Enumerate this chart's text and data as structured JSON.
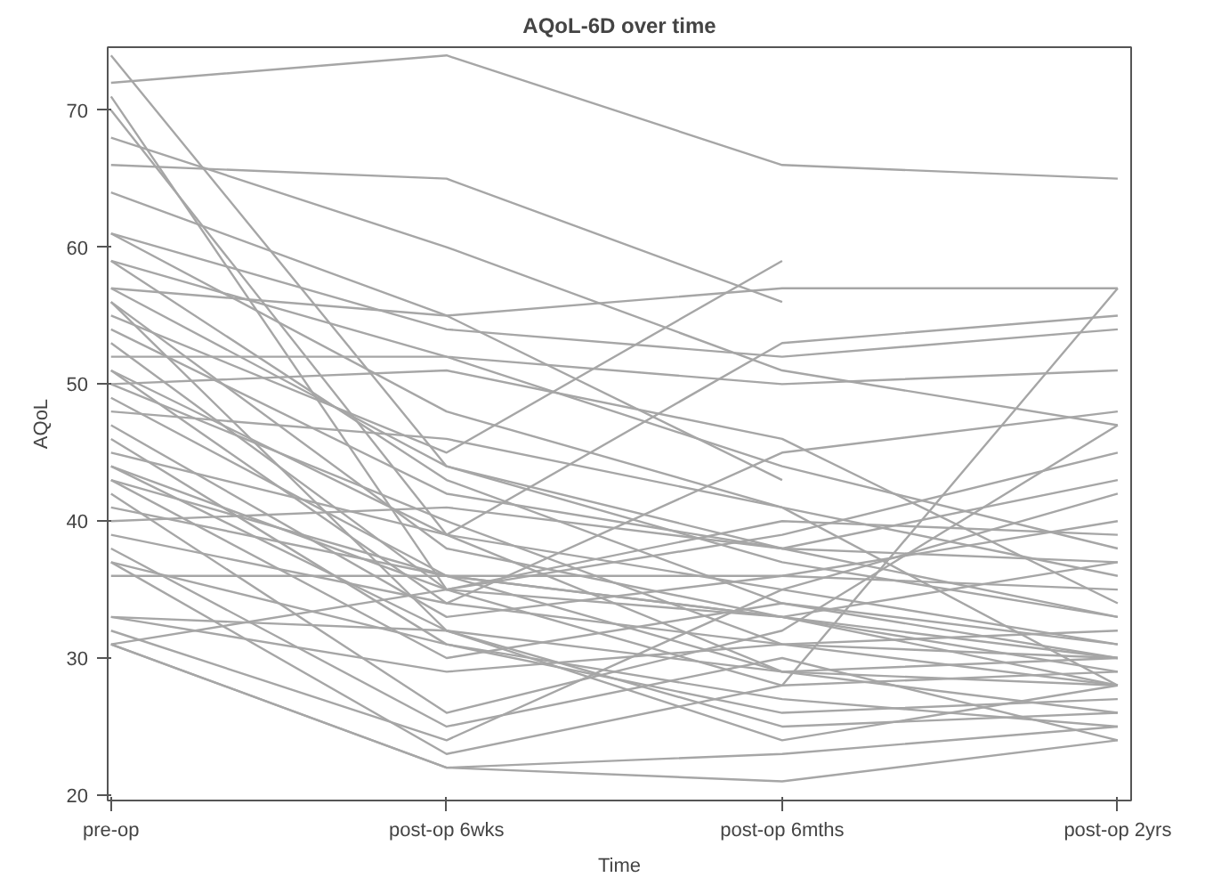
{
  "chart_data": {
    "type": "line",
    "title": "AQoL-6D over time",
    "xlabel": "Time",
    "ylabel": "AQoL",
    "categories": [
      "pre-op",
      "post-op 6wks",
      "post-op 6mths",
      "post-op 2yrs"
    ],
    "ylim": [
      19.6,
      74.6
    ],
    "yticks": [
      20,
      30,
      40,
      50,
      60,
      70
    ],
    "grid": false,
    "marker": "none",
    "line_style": "solid",
    "series": [
      {
        "color": "#a6a6a6",
        "values": [
          72,
          74,
          66,
          65
        ]
      },
      {
        "color": "#a6a6a6",
        "values": [
          66,
          65,
          56,
          null
        ]
      },
      {
        "color": "#a6a6a6",
        "values": [
          68,
          60,
          51,
          47
        ]
      },
      {
        "color": "#a6a6a6",
        "values": [
          74,
          44,
          37,
          33
        ]
      },
      {
        "color": "#a6a6a6",
        "values": [
          71,
          35,
          33,
          30
        ]
      },
      {
        "color": "#a6a6a6",
        "values": [
          70,
          39,
          29,
          28
        ]
      },
      {
        "color": "#a6a6a6",
        "values": [
          64,
          55,
          57,
          57
        ]
      },
      {
        "color": "#a6a6a6",
        "values": [
          61,
          54,
          52,
          54
        ]
      },
      {
        "color": "#a6a6a6",
        "values": [
          61,
          48,
          41,
          36
        ]
      },
      {
        "color": "#a6a6a6",
        "values": [
          59,
          52,
          50,
          51
        ]
      },
      {
        "color": "#a6a6a6",
        "values": [
          59,
          43,
          34,
          30
        ]
      },
      {
        "color": "#a6a6a6",
        "values": [
          57,
          55,
          43,
          null
        ]
      },
      {
        "color": "#a6a6a6",
        "values": [
          57,
          44,
          38,
          37
        ]
      },
      {
        "color": "#a6a6a6",
        "values": [
          56,
          38,
          33,
          28
        ]
      },
      {
        "color": "#a6a6a6",
        "values": [
          56,
          32,
          29,
          26
        ]
      },
      {
        "color": "#a6a6a6",
        "values": [
          55,
          45,
          59,
          null
        ]
      },
      {
        "color": "#a6a6a6",
        "values": [
          54,
          42,
          38,
          43
        ]
      },
      {
        "color": "#a6a6a6",
        "values": [
          53,
          35,
          28,
          29
        ]
      },
      {
        "color": "#a6a6a6",
        "values": [
          52,
          52,
          44,
          38
        ]
      },
      {
        "color": "#a6a6a6",
        "values": [
          51,
          39,
          35,
          31
        ]
      },
      {
        "color": "#a6a6a6",
        "values": [
          51,
          34,
          31,
          28
        ]
      },
      {
        "color": "#a6a6a6",
        "values": [
          50,
          51,
          46,
          34
        ]
      },
      {
        "color": "#a6a6a6",
        "values": [
          50,
          40,
          31,
          30
        ]
      },
      {
        "color": "#a6a6a6",
        "values": [
          49,
          36,
          33,
          29
        ]
      },
      {
        "color": "#a6a6a6",
        "values": [
          48,
          46,
          41,
          28
        ]
      },
      {
        "color": "#a6a6a6",
        "values": [
          47,
          33,
          36,
          40
        ]
      },
      {
        "color": "#a6a6a6",
        "values": [
          46,
          31,
          27,
          25
        ]
      },
      {
        "color": "#a6a6a6",
        "values": [
          45,
          39,
          53,
          55
        ]
      },
      {
        "color": "#a6a6a6",
        "values": [
          44,
          35,
          39,
          45
        ]
      },
      {
        "color": "#a6a6a6",
        "values": [
          44,
          32,
          24,
          28
        ]
      },
      {
        "color": "#a6a6a6",
        "values": [
          43,
          36,
          33,
          37
        ]
      },
      {
        "color": "#a6a6a6",
        "values": [
          43,
          30,
          34,
          31
        ]
      },
      {
        "color": "#a6a6a6",
        "values": [
          42,
          26,
          32,
          47
        ]
      },
      {
        "color": "#a6a6a6",
        "values": [
          41,
          36,
          29,
          30
        ]
      },
      {
        "color": "#a6a6a6",
        "values": [
          40,
          41,
          38,
          33
        ]
      },
      {
        "color": "#a6a6a6",
        "values": [
          39,
          34,
          45,
          48
        ]
      },
      {
        "color": "#a6a6a6",
        "values": [
          38,
          25,
          30,
          24
        ]
      },
      {
        "color": "#a6a6a6",
        "values": [
          37,
          31,
          26,
          27
        ]
      },
      {
        "color": "#a6a6a6",
        "values": [
          37,
          23,
          28,
          57
        ]
      },
      {
        "color": "#a6a6a6",
        "values": [
          36,
          36,
          36,
          35
        ]
      },
      {
        "color": "#a6a6a6",
        "values": [
          33,
          32,
          25,
          26
        ]
      },
      {
        "color": "#a6a6a6",
        "values": [
          33,
          29,
          31,
          32
        ]
      },
      {
        "color": "#a6a6a6",
        "values": [
          32,
          24,
          35,
          42
        ]
      },
      {
        "color": "#a6a6a6",
        "values": [
          31,
          35,
          40,
          39
        ]
      },
      {
        "color": "#a6a6a6",
        "values": [
          31,
          22,
          21,
          24
        ]
      },
      {
        "color": "#a6a6a6",
        "values": [
          31,
          22,
          23,
          25
        ]
      }
    ]
  }
}
